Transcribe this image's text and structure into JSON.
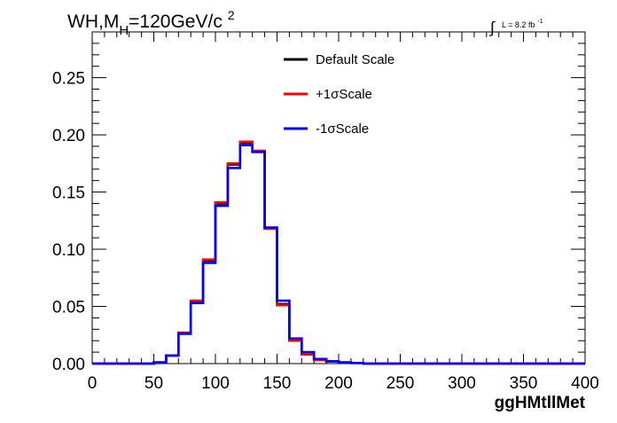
{
  "chart_data": {
    "type": "line",
    "title_main": "WH,M",
    "title_sub": "H",
    "title_rest": "=120GeV/c",
    "title_sup": "2",
    "lumi_integral": "∫",
    "lumi_label": "L = 8.2 fb",
    "lumi_sup": "-1",
    "xlabel": "ggHMtllMet",
    "ylabel": "",
    "xlim": [
      0,
      400
    ],
    "ylim": [
      0,
      0.29
    ],
    "x_ticks": [
      0,
      50,
      100,
      150,
      200,
      250,
      300,
      350,
      400
    ],
    "x_tick_labels": [
      "0",
      "50",
      "100",
      "150",
      "200",
      "250",
      "300",
      "350",
      "400"
    ],
    "y_ticks": [
      0,
      0.05,
      0.1,
      0.15,
      0.2,
      0.25
    ],
    "y_tick_labels": [
      "0.00",
      "0.05",
      "0.10",
      "0.15",
      "0.20",
      "0.25"
    ],
    "bin_edges": [
      0,
      10,
      20,
      30,
      40,
      50,
      60,
      70,
      80,
      90,
      100,
      110,
      120,
      130,
      140,
      150,
      160,
      170,
      180,
      190,
      200,
      210,
      220,
      230,
      240,
      250,
      260,
      270,
      280,
      290,
      300,
      310,
      320,
      330,
      340,
      350,
      360,
      370,
      380,
      390,
      400
    ],
    "legend_position": "top-center",
    "series": [
      {
        "name": "Default Scale",
        "color": "#000000",
        "values": [
          0,
          0,
          0,
          0,
          0,
          0.001,
          0.007,
          0.027,
          0.054,
          0.09,
          0.14,
          0.174,
          0.193,
          0.186,
          0.118,
          0.052,
          0.021,
          0.008,
          0.004,
          0.002,
          0.001,
          0.0005,
          0,
          0,
          0,
          0,
          0,
          0,
          0,
          0,
          0,
          0,
          0,
          0,
          0,
          0,
          0,
          0,
          0,
          0
        ]
      },
      {
        "name": "+1σScale",
        "color": "#ff0000",
        "values": [
          0,
          0,
          0,
          0,
          0,
          0.001,
          0.007,
          0.027,
          0.055,
          0.091,
          0.141,
          0.175,
          0.194,
          0.186,
          0.118,
          0.051,
          0.02,
          0.008,
          0.003,
          0.002,
          0.001,
          0.0005,
          0,
          0,
          0,
          0,
          0,
          0,
          0,
          0,
          0,
          0,
          0,
          0,
          0,
          0,
          0,
          0,
          0,
          0
        ]
      },
      {
        "name": "-1σScale",
        "color": "#0000ff",
        "values": [
          0,
          0,
          0,
          0,
          0,
          0.001,
          0.007,
          0.026,
          0.053,
          0.088,
          0.138,
          0.171,
          0.191,
          0.185,
          0.119,
          0.055,
          0.022,
          0.01,
          0.004,
          0.002,
          0.001,
          0.0005,
          0,
          0,
          0,
          0,
          0,
          0,
          0,
          0,
          0,
          0,
          0,
          0,
          0,
          0,
          0,
          0,
          0,
          0
        ]
      }
    ]
  }
}
